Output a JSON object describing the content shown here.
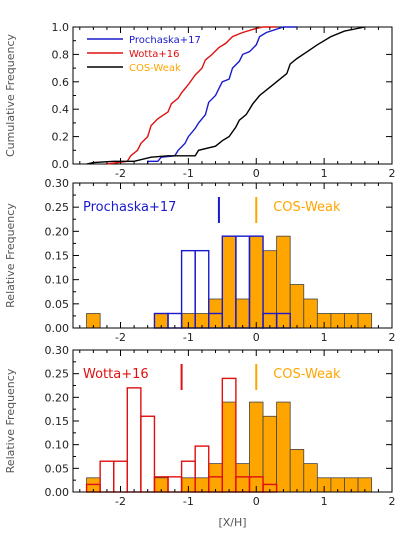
{
  "chart_data": [
    {
      "type": "line",
      "ylabel": "Cumulative Frequency",
      "xlim": [
        -2.7,
        2.0
      ],
      "ylim": [
        0.0,
        1.0
      ],
      "y_ticks": [
        "0.0",
        "0.2",
        "0.4",
        "0.6",
        "0.8",
        "1.0"
      ],
      "x_ticks": [
        -2,
        -1,
        0,
        1,
        2
      ],
      "legend_position": "top-left",
      "series": [
        {
          "name": "Prochaska+17",
          "color": "#1a1acc",
          "points": [
            [
              -1.6,
              0.0
            ],
            [
              -1.6,
              0.02
            ],
            [
              -1.45,
              0.02
            ],
            [
              -1.4,
              0.05
            ],
            [
              -1.2,
              0.06
            ],
            [
              -1.15,
              0.1
            ],
            [
              -1.05,
              0.15
            ],
            [
              -1.0,
              0.2
            ],
            [
              -0.9,
              0.26
            ],
            [
              -0.85,
              0.3
            ],
            [
              -0.75,
              0.36
            ],
            [
              -0.7,
              0.45
            ],
            [
              -0.6,
              0.5
            ],
            [
              -0.55,
              0.55
            ],
            [
              -0.5,
              0.6
            ],
            [
              -0.4,
              0.62
            ],
            [
              -0.35,
              0.7
            ],
            [
              -0.25,
              0.75
            ],
            [
              -0.2,
              0.8
            ],
            [
              -0.1,
              0.82
            ],
            [
              0.0,
              0.87
            ],
            [
              0.05,
              0.93
            ],
            [
              0.15,
              0.96
            ],
            [
              0.4,
              1.0
            ],
            [
              0.6,
              1.0
            ]
          ]
        },
        {
          "name": "Wotta+16",
          "color": "#e01010",
          "points": [
            [
              -2.2,
              0.0
            ],
            [
              -1.9,
              0.02
            ],
            [
              -1.85,
              0.06
            ],
            [
              -1.75,
              0.1
            ],
            [
              -1.7,
              0.15
            ],
            [
              -1.6,
              0.2
            ],
            [
              -1.55,
              0.28
            ],
            [
              -1.45,
              0.33
            ],
            [
              -1.3,
              0.38
            ],
            [
              -1.25,
              0.44
            ],
            [
              -1.15,
              0.48
            ],
            [
              -1.1,
              0.52
            ],
            [
              -1.0,
              0.58
            ],
            [
              -0.9,
              0.65
            ],
            [
              -0.8,
              0.7
            ],
            [
              -0.75,
              0.76
            ],
            [
              -0.65,
              0.8
            ],
            [
              -0.55,
              0.85
            ],
            [
              -0.45,
              0.88
            ],
            [
              -0.35,
              0.93
            ],
            [
              -0.2,
              0.96
            ],
            [
              0.0,
              0.99
            ],
            [
              0.1,
              1.0
            ],
            [
              0.3,
              1.0
            ]
          ]
        },
        {
          "name": "COS-Weak",
          "color": "#000000",
          "points": [
            [
              -2.5,
              0.0
            ],
            [
              -2.4,
              0.01
            ],
            [
              -2.1,
              0.02
            ],
            [
              -1.8,
              0.02
            ],
            [
              -1.55,
              0.05
            ],
            [
              -1.3,
              0.06
            ],
            [
              -0.9,
              0.06
            ],
            [
              -0.85,
              0.1
            ],
            [
              -0.6,
              0.13
            ],
            [
              -0.5,
              0.17
            ],
            [
              -0.4,
              0.2
            ],
            [
              -0.3,
              0.27
            ],
            [
              -0.25,
              0.32
            ],
            [
              -0.15,
              0.36
            ],
            [
              -0.1,
              0.4
            ],
            [
              -0.05,
              0.44
            ],
            [
              0.05,
              0.5
            ],
            [
              0.2,
              0.56
            ],
            [
              0.3,
              0.6
            ],
            [
              0.45,
              0.66
            ],
            [
              0.5,
              0.73
            ],
            [
              0.6,
              0.77
            ],
            [
              0.75,
              0.82
            ],
            [
              0.9,
              0.87
            ],
            [
              1.1,
              0.93
            ],
            [
              1.3,
              0.97
            ],
            [
              1.6,
              1.0
            ]
          ]
        }
      ]
    },
    {
      "type": "bar",
      "ylabel": "Relative Frequency",
      "xlim": [
        -2.7,
        2.0
      ],
      "ylim": [
        0.0,
        0.3
      ],
      "y_ticks": [
        "0.00",
        "0.05",
        "0.10",
        "0.15",
        "0.20",
        "0.25",
        "0.30"
      ],
      "x_ticks": [
        -2,
        -1,
        0,
        1,
        2
      ],
      "bin_width": 0.2,
      "series": [
        {
          "name": "COS-Weak",
          "color": "#ffa500",
          "bins_left": [
            -2.5,
            -2.3,
            -2.1,
            -1.9,
            -1.7,
            -1.5,
            -1.3,
            -1.1,
            -0.9,
            -0.7,
            -0.5,
            -0.3,
            -0.1,
            0.1,
            0.3,
            0.5,
            0.7,
            0.9,
            1.1,
            1.3,
            1.5
          ],
          "values": [
            0.03,
            0.0,
            0.0,
            0.0,
            0.0,
            0.03,
            0.0,
            0.03,
            0.03,
            0.06,
            0.19,
            0.06,
            0.19,
            0.16,
            0.19,
            0.09,
            0.06,
            0.03,
            0.03,
            0.03,
            0.03
          ]
        },
        {
          "name": "Prochaska+17",
          "color": "#1a1acc",
          "bins_left": [
            -1.5,
            -1.3,
            -1.1,
            -0.9,
            -0.7,
            -0.5,
            -0.3,
            -0.1,
            0.1,
            0.3
          ],
          "values": [
            0.03,
            0.03,
            0.16,
            0.16,
            0.03,
            0.19,
            0.19,
            0.19,
            0.03,
            0.03
          ]
        }
      ],
      "annotations": [
        {
          "label": "Prochaska+17",
          "color": "#1a1acc",
          "marker_x": -0.55
        },
        {
          "label": "COS-Weak",
          "color": "#ffa500",
          "marker_x": 0.0
        }
      ]
    },
    {
      "type": "bar",
      "xlabel": "[X/H]",
      "ylabel": "Relative Frequency",
      "xlim": [
        -2.7,
        2.0
      ],
      "ylim": [
        0.0,
        0.3
      ],
      "y_ticks": [
        "0.00",
        "0.05",
        "0.10",
        "0.15",
        "0.20",
        "0.25",
        "0.30"
      ],
      "x_ticks": [
        -2,
        -1,
        0,
        1,
        2
      ],
      "bin_width": 0.2,
      "series": [
        {
          "name": "COS-Weak",
          "color": "#ffa500",
          "bins_left": [
            -2.5,
            -2.3,
            -2.1,
            -1.9,
            -1.7,
            -1.5,
            -1.3,
            -1.1,
            -0.9,
            -0.7,
            -0.5,
            -0.3,
            -0.1,
            0.1,
            0.3,
            0.5,
            0.7,
            0.9,
            1.1,
            1.3,
            1.5
          ],
          "values": [
            0.03,
            0.0,
            0.0,
            0.0,
            0.0,
            0.03,
            0.0,
            0.03,
            0.03,
            0.06,
            0.19,
            0.06,
            0.19,
            0.16,
            0.19,
            0.09,
            0.06,
            0.03,
            0.03,
            0.03,
            0.03
          ]
        },
        {
          "name": "Wotta+16",
          "color": "#e01010",
          "bins_left": [
            -2.5,
            -2.3,
            -2.1,
            -1.9,
            -1.7,
            -1.5,
            -1.3,
            -1.1,
            -0.9,
            -0.7,
            -0.5,
            -0.3,
            -0.1,
            0.1
          ],
          "values": [
            0.016,
            0.065,
            0.065,
            0.22,
            0.16,
            0.032,
            0.032,
            0.065,
            0.097,
            0.032,
            0.24,
            0.032,
            0.032,
            0.016
          ]
        }
      ],
      "annotations": [
        {
          "label": "Wotta+16",
          "color": "#e01010",
          "marker_x": -1.1
        },
        {
          "label": "COS-Weak",
          "color": "#ffa500",
          "marker_x": 0.0
        }
      ]
    }
  ]
}
